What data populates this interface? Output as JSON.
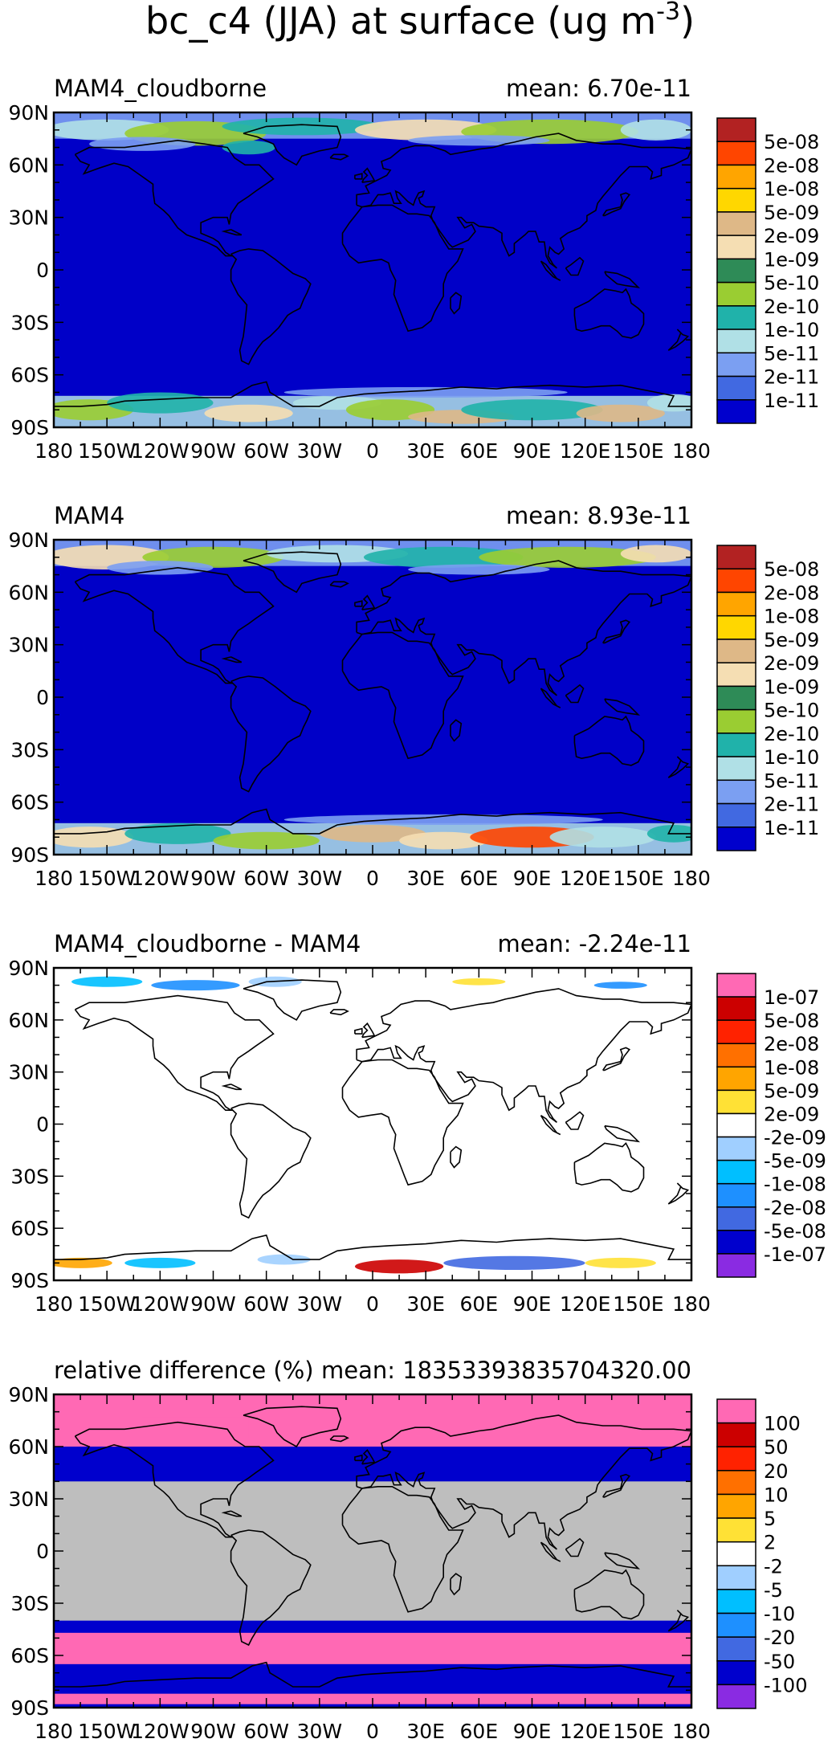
{
  "title": "bc_c4 (JJA) at surface (ug m",
  "title_exponent": "-3",
  "title_close": ")",
  "chart_data": [
    {
      "type": "heatmap",
      "title": "MAM4_cloudborne",
      "mean_label": "mean: 6.70e-11",
      "mean": 6.7e-11,
      "x_ticks": [
        "180",
        "150W",
        "120W",
        "90W",
        "60W",
        "30W",
        "0",
        "30E",
        "60E",
        "90E",
        "120E",
        "150E",
        "180"
      ],
      "y_ticks": [
        "90N",
        "60N",
        "30N",
        "0",
        "30S",
        "60S",
        "90S"
      ],
      "xlim": [
        -180,
        180
      ],
      "ylim": [
        -90,
        90
      ],
      "field_color": "#0000C8",
      "colorbar": {
        "labels": [
          "5e-08",
          "2e-08",
          "1e-08",
          "5e-09",
          "2e-09",
          "1e-09",
          "5e-10",
          "2e-10",
          "1e-10",
          "5e-11",
          "2e-11",
          "1e-11"
        ],
        "colors": [
          "#B22222",
          "#FF4500",
          "#FFA500",
          "#FFD700",
          "#DEB887",
          "#F5DEB3",
          "#2E8B57",
          "#9ACD32",
          "#20B2AA",
          "#B0E0E6",
          "#7B9FF2",
          "#4169E1",
          "#0000CD"
        ]
      }
    },
    {
      "type": "heatmap",
      "title": "MAM4",
      "mean_label": "mean: 8.93e-11",
      "mean": 8.93e-11,
      "x_ticks": [
        "180",
        "150W",
        "120W",
        "90W",
        "60W",
        "30W",
        "0",
        "30E",
        "60E",
        "90E",
        "120E",
        "150E",
        "180"
      ],
      "y_ticks": [
        "90N",
        "60N",
        "30N",
        "0",
        "30S",
        "60S",
        "90S"
      ],
      "xlim": [
        -180,
        180
      ],
      "ylim": [
        -90,
        90
      ],
      "field_color": "#0000C8",
      "colorbar": {
        "labels": [
          "5e-08",
          "2e-08",
          "1e-08",
          "5e-09",
          "2e-09",
          "1e-09",
          "5e-10",
          "2e-10",
          "1e-10",
          "5e-11",
          "2e-11",
          "1e-11"
        ],
        "colors": [
          "#B22222",
          "#FF4500",
          "#FFA500",
          "#FFD700",
          "#DEB887",
          "#F5DEB3",
          "#2E8B57",
          "#9ACD32",
          "#20B2AA",
          "#B0E0E6",
          "#7B9FF2",
          "#4169E1",
          "#0000CD"
        ]
      }
    },
    {
      "type": "heatmap",
      "title": "MAM4_cloudborne - MAM4",
      "mean_label": "mean: -2.24e-11",
      "mean": -2.24e-11,
      "x_ticks": [
        "180",
        "150W",
        "120W",
        "90W",
        "60W",
        "30W",
        "0",
        "30E",
        "60E",
        "90E",
        "120E",
        "150E",
        "180"
      ],
      "y_ticks": [
        "90N",
        "60N",
        "30N",
        "0",
        "30S",
        "60S",
        "90S"
      ],
      "xlim": [
        -180,
        180
      ],
      "ylim": [
        -90,
        90
      ],
      "field_color": "#FFFFFF",
      "colorbar": {
        "labels": [
          "1e-07",
          "5e-08",
          "2e-08",
          "1e-08",
          "5e-09",
          "2e-09",
          "-2e-09",
          "-5e-09",
          "-1e-08",
          "-2e-08",
          "-5e-08",
          "-1e-07"
        ],
        "colors": [
          "#FF69B4",
          "#CC0000",
          "#FF2200",
          "#FF7000",
          "#FFA500",
          "#FFE135",
          "#FFFFFF",
          "#A0CFFF",
          "#00BFFF",
          "#1E90FF",
          "#4169E1",
          "#0000CD",
          "#8A2BE2"
        ]
      }
    },
    {
      "type": "heatmap",
      "title": "relative difference (%)",
      "mean_label": "mean: 18353393835704320.00",
      "mean": 1.835339383570432e+16,
      "x_ticks": [
        "180",
        "150W",
        "120W",
        "90W",
        "60W",
        "30W",
        "0",
        "30E",
        "60E",
        "90E",
        "120E",
        "150E",
        "180"
      ],
      "y_ticks": [
        "90N",
        "60N",
        "30N",
        "0",
        "30S",
        "60S",
        "90S"
      ],
      "xlim": [
        -180,
        180
      ],
      "ylim": [
        -90,
        90
      ],
      "field_color": "#BEBEBE",
      "colorbar": {
        "labels": [
          "100",
          "50",
          "20",
          "10",
          "5",
          "2",
          "-2",
          "-5",
          "-10",
          "-20",
          "-50",
          "-100"
        ],
        "colors": [
          "#FF69B4",
          "#CC0000",
          "#FF2200",
          "#FF7000",
          "#FFA500",
          "#FFE135",
          "#FFFFFF",
          "#A0CFFF",
          "#00BFFF",
          "#1E90FF",
          "#4169E1",
          "#0000CD",
          "#8A2BE2"
        ]
      }
    }
  ]
}
